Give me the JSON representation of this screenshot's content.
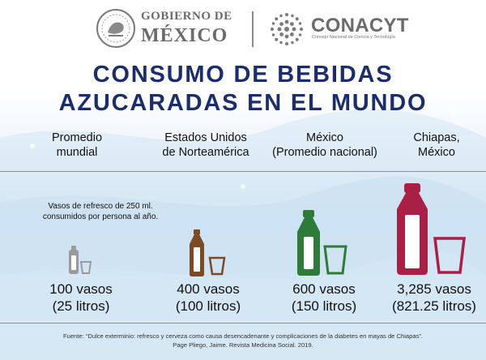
{
  "header": {
    "gob_line1": "GOBIERNO DE",
    "gob_line2": "MÉXICO",
    "conacyt_name": "CONACYT",
    "conacyt_sub": "Consejo Nacional de Ciencia y Tecnología"
  },
  "title": {
    "line1": "CONSUMO DE BEBIDAS",
    "line2": "AZUCARADAS EN EL MUNDO"
  },
  "note": {
    "line1": "Vasos de refresco de 250 ml.",
    "line2": "consumidos por persona al año."
  },
  "columns": [
    {
      "name_line1": "Promedio",
      "name_line2": "mundial",
      "vasos": "100 vasos",
      "litros": "(25 litros)",
      "color": "#9a9a9a"
    },
    {
      "name_line1": "Estados Unidos",
      "name_line2": "de Norteamérica",
      "vasos": "400 vasos",
      "litros": "(100 litros)",
      "color": "#7a4a25"
    },
    {
      "name_line1": "México",
      "name_line2": "(Promedio nacional)",
      "vasos": "600 vasos",
      "litros": "(150 litros)",
      "color": "#2e7a38"
    },
    {
      "name_line1": "Chiapas,",
      "name_line2": "México",
      "vasos": "3,285 vasos",
      "litros": "(821.25 litros)",
      "color": "#a82046"
    }
  ],
  "source": {
    "line1": "Fuente: “Dulce exterminio: refresco y cerveza como causa desencadenante y complicaciones de la diabetes en mayas de Chiapas”.",
    "line2": "Page Pliego, Jaime. Revista Medicina Social. 2019."
  },
  "colors": {
    "title": "#1c2d6b",
    "header_gray": "#6b6b6b"
  }
}
